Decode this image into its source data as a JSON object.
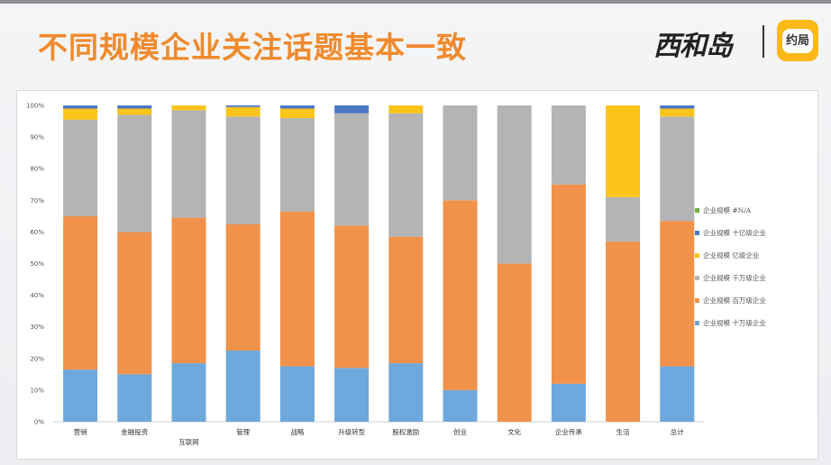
{
  "page": {
    "title": "不同规模企业关注话题基本一致",
    "logo_text": "西和岛",
    "badge_text": "约局"
  },
  "chart_data": {
    "type": "bar",
    "stacked": true,
    "normalized": true,
    "title": "",
    "xlabel": "",
    "ylabel": "",
    "ylim": [
      0,
      100
    ],
    "yticks": [
      "0%",
      "10%",
      "20%",
      "30%",
      "40%",
      "50%",
      "60%",
      "70%",
      "80%",
      "90%",
      "100%"
    ],
    "grid": false,
    "legend_position": "right",
    "categories": [
      "营销",
      "金融投资",
      "互联网",
      "管理",
      "战略",
      "升级转型",
      "股权激励",
      "创业",
      "文化",
      "企业传承",
      "生活",
      "总计"
    ],
    "series": [
      {
        "name": "企业规模 十万级企业",
        "color": "#6ea8dc",
        "values": [
          16.5,
          15,
          18.5,
          22.5,
          17.5,
          17,
          18.5,
          10,
          0,
          12,
          0,
          17.5
        ]
      },
      {
        "name": "企业规模 百万级企业",
        "color": "#f0924a",
        "values": [
          48.5,
          45,
          46,
          40,
          49,
          45,
          40,
          60,
          50,
          63,
          57,
          46
        ]
      },
      {
        "name": "企业规模 千万级企业",
        "color": "#b4b4b4",
        "values": [
          30.5,
          37,
          34,
          34,
          29.5,
          35.5,
          39,
          30,
          50,
          25,
          14,
          33
        ]
      },
      {
        "name": "企业规模 亿级企业",
        "color": "#fcc419",
        "values": [
          3.5,
          2,
          1.5,
          3,
          3,
          0,
          2.5,
          0,
          0,
          0,
          29,
          2.5
        ]
      },
      {
        "name": "企业规模 十亿级企业",
        "color": "#4a78c4",
        "values": [
          1,
          1,
          0,
          0.5,
          1,
          2.5,
          0,
          0,
          0,
          0,
          0,
          1
        ]
      },
      {
        "name": "企业规模 #N/A",
        "color": "#70ad47",
        "values": [
          0,
          0,
          0,
          0,
          0,
          0,
          0,
          0,
          0,
          0,
          0,
          0
        ]
      }
    ]
  }
}
